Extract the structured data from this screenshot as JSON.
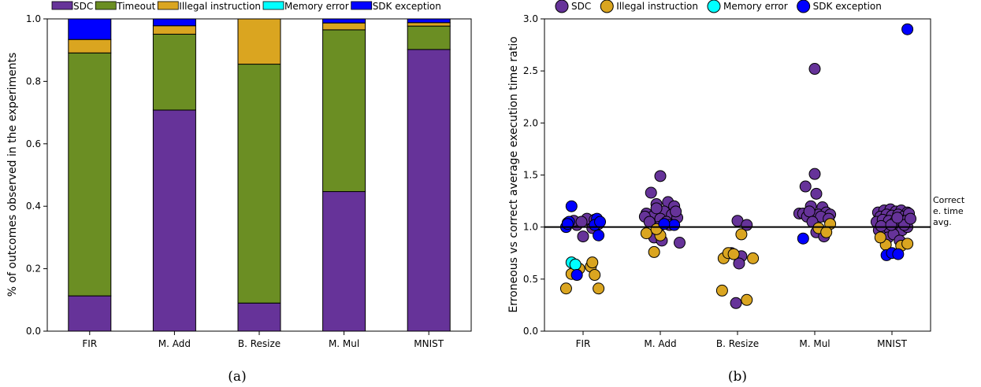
{
  "chart_data": [
    {
      "type": "bar",
      "stacked": true,
      "caption": "(a)",
      "ylabel": "% of outcomes observed in the experiments",
      "ylim": [
        0,
        1
      ],
      "yticks": [
        "0.0",
        "0.2",
        "0.4",
        "0.6",
        "0.8",
        "1.0"
      ],
      "categories": [
        "FIR",
        "M. Add",
        "B. Resize",
        "M. Mul",
        "MNIST"
      ],
      "legend_position": "top",
      "series": [
        {
          "name": "SDC",
          "color": "#663399",
          "values": [
            0.113,
            0.708,
            0.09,
            0.447,
            0.902
          ]
        },
        {
          "name": "Timeout",
          "color": "#6b8e23",
          "values": [
            0.778,
            0.243,
            0.765,
            0.518,
            0.075
          ]
        },
        {
          "name": "Illegal instruction",
          "color": "#daa520",
          "values": [
            0.043,
            0.027,
            0.145,
            0.022,
            0.011
          ]
        },
        {
          "name": "Memory error",
          "color": "#00ffff",
          "values": [
            0.0,
            0.0,
            0.0,
            0.0,
            0.0
          ]
        },
        {
          "name": "SDK exception",
          "color": "#0000ff",
          "values": [
            0.066,
            0.022,
            0.0,
            0.013,
            0.012
          ]
        }
      ]
    },
    {
      "type": "scatter",
      "caption": "(b)",
      "ylabel": "Erroneous vs correct average execution time ratio",
      "ylim": [
        0,
        3
      ],
      "yticks": [
        "0.0",
        "0.5",
        "1.0",
        "1.5",
        "2.0",
        "2.5",
        "3.0"
      ],
      "categories": [
        "FIR",
        "M. Add",
        "B. Resize",
        "M. Mul",
        "MNIST"
      ],
      "legend_position": "top",
      "reference_line": {
        "y": 1.0,
        "label_lines": [
          "Correct",
          "e. time",
          "avg."
        ]
      },
      "series": [
        {
          "name": "SDC",
          "color": "#663399",
          "points": [
            [
              0,
              0.91
            ],
            [
              -0.08,
              1.02
            ],
            [
              0.1,
              1.05
            ],
            [
              -0.2,
              1.04
            ],
            [
              0.05,
              1.08
            ],
            [
              0.15,
              1.07
            ],
            [
              -0.12,
              1.06
            ],
            [
              0.2,
              1.03
            ],
            [
              -0.02,
              1.05
            ],
            [
              0.12,
              0.99
            ],
            [
              1.0,
              1.49
            ],
            [
              0.88,
              1.33
            ],
            [
              1.1,
              1.24
            ],
            [
              0.95,
              1.22
            ],
            [
              1.18,
              1.2
            ],
            [
              0.82,
              1.13
            ],
            [
              1.05,
              1.15
            ],
            [
              0.9,
              1.1
            ],
            [
              1.15,
              1.12
            ],
            [
              1.22,
              1.09
            ],
            [
              0.8,
              1.1
            ],
            [
              1.0,
              1.08
            ],
            [
              1.08,
              1.05
            ],
            [
              0.92,
              0.9
            ],
            [
              1.02,
              0.87
            ],
            [
              1.25,
              0.85
            ],
            [
              0.98,
              1.0
            ],
            [
              1.12,
              1.02
            ],
            [
              0.86,
              1.05
            ],
            [
              1.2,
              1.15
            ],
            [
              0.95,
              1.18
            ],
            [
              2.0,
              1.06
            ],
            [
              2.12,
              1.02
            ],
            [
              1.92,
              0.75
            ],
            [
              2.05,
              0.72
            ],
            [
              2.02,
              0.65
            ],
            [
              1.98,
              0.27
            ],
            [
              3.0,
              2.52
            ],
            [
              3.0,
              1.51
            ],
            [
              2.88,
              1.39
            ],
            [
              3.02,
              1.32
            ],
            [
              2.95,
              1.2
            ],
            [
              3.1,
              1.19
            ],
            [
              2.8,
              1.13
            ],
            [
              2.85,
              1.13
            ],
            [
              2.9,
              1.1
            ],
            [
              3.05,
              1.12
            ],
            [
              3.15,
              1.14
            ],
            [
              3.2,
              1.12
            ],
            [
              2.93,
              1.15
            ],
            [
              3.08,
              1.1
            ],
            [
              3.18,
              1.08
            ],
            [
              3.02,
              0.95
            ],
            [
              3.12,
              0.91
            ],
            [
              2.97,
              1.05
            ],
            [
              3.82,
              1.14
            ],
            [
              3.9,
              1.16
            ],
            [
              3.98,
              1.17
            ],
            [
              4.05,
              1.15
            ],
            [
              4.12,
              1.16
            ],
            [
              4.2,
              1.14
            ],
            [
              3.85,
              1.1
            ],
            [
              3.93,
              1.12
            ],
            [
              4.0,
              1.11
            ],
            [
              4.08,
              1.12
            ],
            [
              4.15,
              1.1
            ],
            [
              4.22,
              1.13
            ],
            [
              3.8,
              1.05
            ],
            [
              3.88,
              1.07
            ],
            [
              3.96,
              1.06
            ],
            [
              4.04,
              1.05
            ],
            [
              4.1,
              1.07
            ],
            [
              4.18,
              1.06
            ],
            [
              3.83,
              0.97
            ],
            [
              3.9,
              0.99
            ],
            [
              3.97,
              0.98
            ],
            [
              4.06,
              0.95
            ],
            [
              4.13,
              0.97
            ],
            [
              4.2,
              1.0
            ],
            [
              3.95,
              0.9
            ],
            [
              4.02,
              0.93
            ],
            [
              4.1,
              0.87
            ],
            [
              3.86,
              1.01
            ],
            [
              4.16,
              1.02
            ],
            [
              4.24,
              1.08
            ],
            [
              3.99,
              1.02
            ],
            [
              4.07,
              1.09
            ]
          ]
        },
        {
          "name": "Illegal instruction",
          "color": "#daa520",
          "points": [
            [
              -0.22,
              0.41
            ],
            [
              0.2,
              0.41
            ],
            [
              -0.05,
              0.6
            ],
            [
              0.1,
              0.62
            ],
            [
              0.12,
              0.66
            ],
            [
              0.15,
              0.54
            ],
            [
              -0.15,
              0.55
            ],
            [
              0.82,
              0.94
            ],
            [
              0.92,
              0.76
            ],
            [
              1.0,
              0.92
            ],
            [
              0.95,
              0.98
            ],
            [
              1.8,
              0.39
            ],
            [
              1.82,
              0.7
            ],
            [
              1.88,
              0.75
            ],
            [
              1.95,
              0.74
            ],
            [
              2.2,
              0.7
            ],
            [
              2.05,
              0.93
            ],
            [
              2.12,
              0.3
            ],
            [
              3.05,
              0.99
            ],
            [
              3.2,
              1.03
            ],
            [
              3.15,
              0.95
            ],
            [
              3.92,
              0.83
            ],
            [
              4.12,
              0.82
            ],
            [
              4.2,
              0.84
            ],
            [
              3.85,
              0.9
            ]
          ]
        },
        {
          "name": "Memory error",
          "color": "#00ffff",
          "points": [
            [
              -0.15,
              0.66
            ],
            [
              -0.1,
              0.64
            ]
          ]
        },
        {
          "name": "SDK exception",
          "color": "#0000ff",
          "points": [
            [
              -0.15,
              1.2
            ],
            [
              -0.22,
              1.0
            ],
            [
              -0.18,
              1.05
            ],
            [
              0.18,
              1.08
            ],
            [
              0.15,
              1.02
            ],
            [
              -0.08,
              0.54
            ],
            [
              0.2,
              0.92
            ],
            [
              -0.2,
              1.03
            ],
            [
              0.22,
              1.05
            ],
            [
              1.18,
              1.02
            ],
            [
              1.05,
              1.03
            ],
            [
              2.85,
              0.89
            ],
            [
              4.2,
              2.9
            ],
            [
              3.93,
              0.73
            ],
            [
              4.0,
              0.75
            ],
            [
              4.08,
              0.74
            ]
          ]
        }
      ]
    }
  ]
}
